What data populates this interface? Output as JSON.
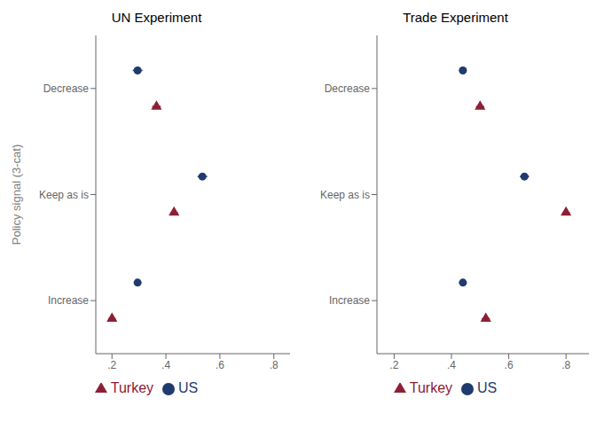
{
  "chart_data": [
    {
      "type": "scatter",
      "orientation": "horizontal",
      "title": "UN Experiment",
      "ylabel": "Policy signal (3-cat)",
      "categories": [
        "Decrease",
        "Keep as is",
        "Increase"
      ],
      "series": [
        {
          "name": "US",
          "color": "#1F3A6E",
          "marker": "circle",
          "values": [
            0.295,
            0.535,
            0.295
          ],
          "xerr": [
            0.018,
            0.018,
            0.013
          ]
        },
        {
          "name": "Turkey",
          "color": "#8B2035",
          "marker": "triangle",
          "values": [
            0.365,
            0.43,
            0.2
          ],
          "xerr": [
            0.016,
            0.014,
            0.014
          ]
        }
      ],
      "xlim": [
        0.14,
        0.86
      ],
      "xticks": [
        {
          "value": 0.2,
          "label": ".2"
        },
        {
          "value": 0.4,
          "label": ".4"
        },
        {
          "value": 0.6,
          "label": ".6"
        },
        {
          "value": 0.8,
          "label": ".8"
        }
      ],
      "legend": "bottom"
    },
    {
      "type": "scatter",
      "orientation": "horizontal",
      "title": "Trade Experiment",
      "categories": [
        "Decrease",
        "Keep as is",
        "Increase"
      ],
      "series": [
        {
          "name": "US",
          "color": "#1F3A6E",
          "marker": "circle",
          "values": [
            0.44,
            0.655,
            0.44
          ],
          "xerr": [
            0.013,
            0.016,
            0.013
          ]
        },
        {
          "name": "Turkey",
          "color": "#8B2035",
          "marker": "triangle",
          "values": [
            0.5,
            0.8,
            0.52
          ],
          "xerr": [
            0.014,
            0.013,
            0.014
          ]
        }
      ],
      "xlim": [
        0.14,
        0.88
      ],
      "xticks": [
        {
          "value": 0.2,
          "label": ".2"
        },
        {
          "value": 0.4,
          "label": ".4"
        },
        {
          "value": 0.6,
          "label": ".6"
        },
        {
          "value": 0.8,
          "label": ".8"
        }
      ],
      "legend": "bottom"
    }
  ]
}
